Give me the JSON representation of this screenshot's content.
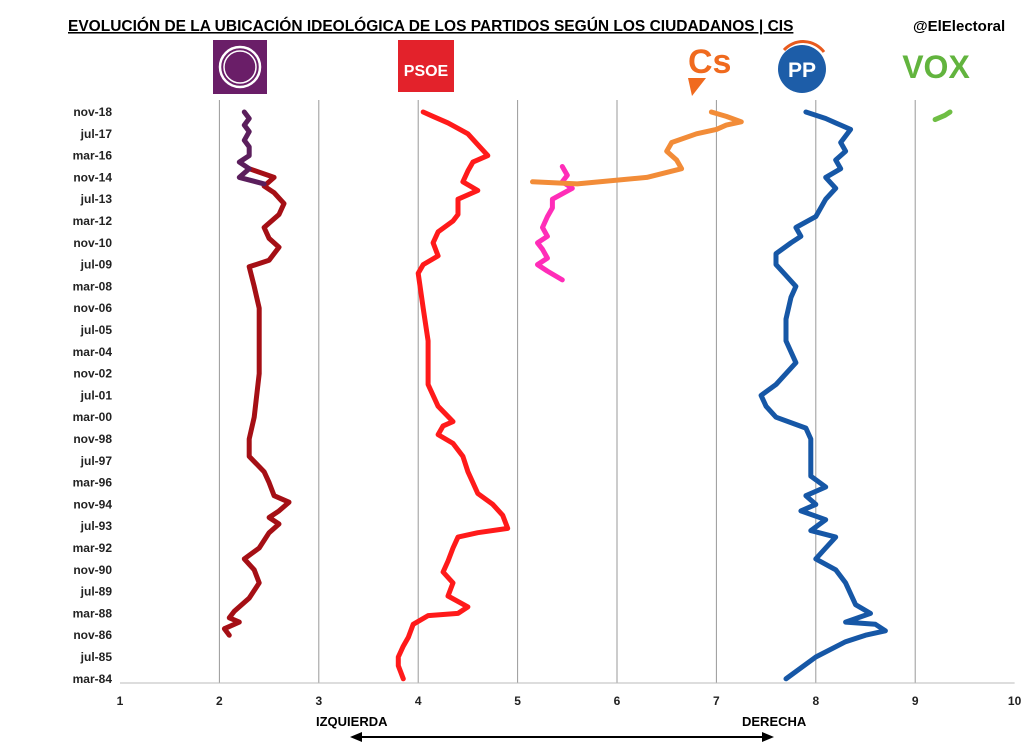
{
  "chart_data": {
    "type": "line",
    "title": "EVOLUCIÓN DE LA UBICACIÓN IDEOLÓGICA DE LOS PARTIDOS SEGÚN LOS CIUDADANOS | CIS",
    "credit": "@ElElectoral",
    "xlabel_left": "IZQUIERDA",
    "xlabel_right": "DERECHA",
    "xlim": [
      1,
      10
    ],
    "x_ticks": [
      "1",
      "2",
      "3",
      "4",
      "5",
      "6",
      "7",
      "8",
      "9",
      "10"
    ],
    "y_ticks": [
      "nov-18",
      "jul-17",
      "mar-16",
      "nov-14",
      "jul-13",
      "mar-12",
      "nov-10",
      "jul-09",
      "mar-08",
      "nov-06",
      "jul-05",
      "mar-04",
      "nov-02",
      "jul-01",
      "mar-00",
      "nov-98",
      "jul-97",
      "mar-96",
      "nov-94",
      "jul-93",
      "mar-92",
      "nov-90",
      "jul-89",
      "mar-88",
      "nov-86",
      "jul-85",
      "mar-84"
    ],
    "grid": "vertical",
    "logos": {
      "psoe": "PSOE",
      "cs": "Cs",
      "pp": "PP",
      "vox": "VOX"
    },
    "series": [
      {
        "color": "#a50f15",
        "points": [
          [
            2.1,
            24.0
          ],
          [
            2.05,
            23.7
          ],
          [
            2.2,
            23.4
          ],
          [
            2.1,
            23.2
          ],
          [
            2.15,
            22.9
          ],
          [
            2.3,
            22.3
          ],
          [
            2.4,
            21.6
          ],
          [
            2.35,
            21.0
          ],
          [
            2.25,
            20.5
          ],
          [
            2.4,
            20.0
          ],
          [
            2.5,
            19.3
          ],
          [
            2.6,
            18.9
          ],
          [
            2.5,
            18.6
          ],
          [
            2.6,
            18.3
          ],
          [
            2.7,
            17.9
          ],
          [
            2.55,
            17.6
          ],
          [
            2.5,
            17.0
          ],
          [
            2.45,
            16.5
          ],
          [
            2.3,
            15.8
          ],
          [
            2.3,
            15.0
          ],
          [
            2.35,
            14.0
          ],
          [
            2.4,
            12.0
          ],
          [
            2.4,
            10.0
          ],
          [
            2.4,
            9.0
          ],
          [
            2.35,
            8.0
          ],
          [
            2.3,
            7.1
          ],
          [
            2.5,
            6.8
          ],
          [
            2.6,
            6.2
          ],
          [
            2.5,
            5.8
          ],
          [
            2.45,
            5.3
          ],
          [
            2.6,
            4.7
          ],
          [
            2.65,
            4.2
          ],
          [
            2.55,
            3.7
          ],
          [
            2.45,
            3.4
          ],
          [
            2.55,
            3.0
          ],
          [
            2.3,
            2.6
          ]
        ]
      },
      {
        "color": "#5b1e5c",
        "points": [
          [
            2.45,
            3.3
          ],
          [
            2.2,
            3.0
          ],
          [
            2.3,
            2.6
          ],
          [
            2.2,
            2.3
          ],
          [
            2.3,
            2.0
          ],
          [
            2.3,
            1.6
          ],
          [
            2.25,
            1.3
          ],
          [
            2.3,
            0.9
          ],
          [
            2.25,
            0.6
          ],
          [
            2.3,
            0.3
          ],
          [
            2.25,
            0.0
          ]
        ]
      },
      {
        "color": "#ff1a1a",
        "points": [
          [
            3.85,
            26.0
          ],
          [
            3.8,
            25.4
          ],
          [
            3.8,
            25.0
          ],
          [
            3.85,
            24.5
          ],
          [
            3.9,
            24.1
          ],
          [
            3.95,
            23.5
          ],
          [
            4.1,
            23.1
          ],
          [
            4.4,
            23.0
          ],
          [
            4.5,
            22.7
          ],
          [
            4.3,
            22.2
          ],
          [
            4.35,
            21.6
          ],
          [
            4.25,
            21.1
          ],
          [
            4.3,
            20.6
          ],
          [
            4.35,
            20.0
          ],
          [
            4.4,
            19.5
          ],
          [
            4.6,
            19.3
          ],
          [
            4.9,
            19.1
          ],
          [
            4.85,
            18.5
          ],
          [
            4.75,
            18.0
          ],
          [
            4.6,
            17.5
          ],
          [
            4.55,
            17.0
          ],
          [
            4.5,
            16.5
          ],
          [
            4.45,
            15.8
          ],
          [
            4.35,
            15.2
          ],
          [
            4.2,
            14.8
          ],
          [
            4.25,
            14.4
          ],
          [
            4.35,
            14.2
          ],
          [
            4.2,
            13.5
          ],
          [
            4.1,
            12.5
          ],
          [
            4.1,
            10.5
          ],
          [
            4.05,
            9.0
          ],
          [
            4.0,
            7.4
          ],
          [
            4.05,
            7.0
          ],
          [
            4.2,
            6.6
          ],
          [
            4.15,
            6.0
          ],
          [
            4.2,
            5.5
          ],
          [
            4.35,
            5.0
          ],
          [
            4.4,
            4.7
          ],
          [
            4.4,
            4.0
          ],
          [
            4.6,
            3.6
          ],
          [
            4.45,
            3.2
          ],
          [
            4.5,
            2.7
          ],
          [
            4.55,
            2.3
          ],
          [
            4.7,
            2.0
          ],
          [
            4.6,
            1.5
          ],
          [
            4.5,
            1.0
          ],
          [
            4.3,
            0.5
          ],
          [
            4.15,
            0.2
          ],
          [
            4.05,
            0.0
          ]
        ]
      },
      {
        "color": "#ff2db8",
        "points": [
          [
            5.45,
            7.7
          ],
          [
            5.3,
            7.3
          ],
          [
            5.2,
            7.0
          ],
          [
            5.3,
            6.7
          ],
          [
            5.25,
            6.3
          ],
          [
            5.2,
            6.0
          ],
          [
            5.3,
            5.7
          ],
          [
            5.25,
            5.3
          ],
          [
            5.3,
            4.8
          ],
          [
            5.35,
            4.4
          ],
          [
            5.35,
            4.0
          ],
          [
            5.55,
            3.5
          ],
          [
            5.45,
            3.2
          ],
          [
            5.5,
            2.9
          ],
          [
            5.45,
            2.5
          ]
        ]
      },
      {
        "color": "#f28c38",
        "points": [
          [
            5.15,
            3.2
          ],
          [
            5.6,
            3.3
          ],
          [
            6.3,
            3.0
          ],
          [
            6.65,
            2.6
          ],
          [
            6.6,
            2.2
          ],
          [
            6.5,
            1.8
          ],
          [
            6.55,
            1.4
          ],
          [
            6.8,
            1.0
          ],
          [
            7.0,
            0.8
          ],
          [
            7.1,
            0.6
          ],
          [
            7.25,
            0.45
          ],
          [
            7.1,
            0.2
          ],
          [
            6.95,
            0.0
          ]
        ]
      },
      {
        "color": "#1657a6",
        "points": [
          [
            7.7,
            26.0
          ],
          [
            8.0,
            25.0
          ],
          [
            8.3,
            24.3
          ],
          [
            8.5,
            24.0
          ],
          [
            8.7,
            23.8
          ],
          [
            8.6,
            23.5
          ],
          [
            8.3,
            23.4
          ],
          [
            8.55,
            23.0
          ],
          [
            8.4,
            22.6
          ],
          [
            8.3,
            21.6
          ],
          [
            8.2,
            21.0
          ],
          [
            8.0,
            20.5
          ],
          [
            8.1,
            20.0
          ],
          [
            8.2,
            19.5
          ],
          [
            7.95,
            19.2
          ],
          [
            8.1,
            18.7
          ],
          [
            7.85,
            18.3
          ],
          [
            8.0,
            18.0
          ],
          [
            7.9,
            17.6
          ],
          [
            8.1,
            17.2
          ],
          [
            7.95,
            16.7
          ],
          [
            7.95,
            15.0
          ],
          [
            7.9,
            14.5
          ],
          [
            7.6,
            14.0
          ],
          [
            7.5,
            13.5
          ],
          [
            7.45,
            13.0
          ],
          [
            7.6,
            12.5
          ],
          [
            7.7,
            12.0
          ],
          [
            7.8,
            11.5
          ],
          [
            7.7,
            10.5
          ],
          [
            7.7,
            9.5
          ],
          [
            7.75,
            8.5
          ],
          [
            7.8,
            8.0
          ],
          [
            7.7,
            7.5
          ],
          [
            7.6,
            7.0
          ],
          [
            7.6,
            6.5
          ],
          [
            7.75,
            6.0
          ],
          [
            7.85,
            5.7
          ],
          [
            7.8,
            5.3
          ],
          [
            8.0,
            4.8
          ],
          [
            8.1,
            4.0
          ],
          [
            8.2,
            3.5
          ],
          [
            8.1,
            3.0
          ],
          [
            8.25,
            2.6
          ],
          [
            8.2,
            2.2
          ],
          [
            8.3,
            1.8
          ],
          [
            8.25,
            1.4
          ],
          [
            8.35,
            0.8
          ],
          [
            8.2,
            0.5
          ],
          [
            8.1,
            0.3
          ],
          [
            8.0,
            0.15
          ],
          [
            7.9,
            0.0
          ]
        ]
      },
      {
        "color": "#6fbe44",
        "points": [
          [
            9.2,
            0.35
          ],
          [
            9.3,
            0.15
          ],
          [
            9.35,
            0.0
          ]
        ]
      }
    ]
  }
}
